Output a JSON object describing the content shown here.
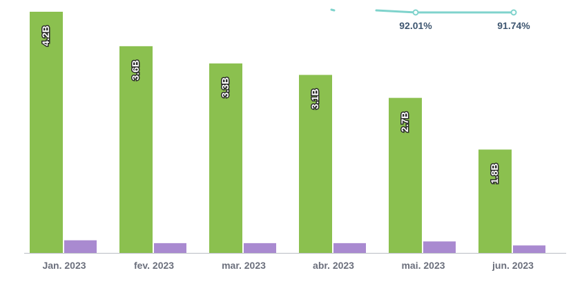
{
  "chart_data": {
    "type": "bar",
    "categories": [
      "Jan. 2023",
      "fev. 2023",
      "mar. 2023",
      "abr. 2023",
      "mai. 2023",
      "jun. 2023"
    ],
    "series": [
      {
        "color": "#8bc04f",
        "values": [
          4.2,
          3.6,
          3.3,
          3.1,
          2.7,
          1.8
        ],
        "value_labels": [
          "4.2B",
          "3.6B",
          "3.3B",
          "3.1B",
          "2.7B",
          "1.8B"
        ]
      },
      {
        "color": "#a98ad0",
        "values": [
          0.22,
          0.17,
          0.17,
          0.17,
          0.2,
          0.13
        ]
      },
      {
        "type": "line",
        "color": "#7fd3cc",
        "values": [
          null,
          null,
          null,
          null,
          92.01,
          91.74
        ],
        "value_labels": [
          "",
          "",
          "",
          "",
          "92.01%",
          "91.74%"
        ]
      }
    ],
    "ylim": [
      0,
      4.2
    ],
    "legend": "none",
    "grid": false
  }
}
